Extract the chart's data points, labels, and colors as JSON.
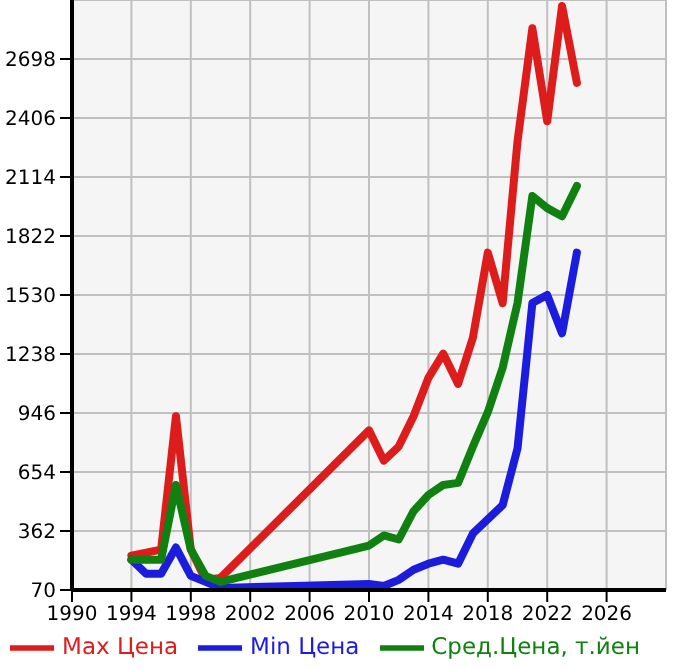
{
  "chart_data": {
    "type": "line",
    "xlim": [
      1990,
      2030
    ],
    "xticks": [
      1990,
      1994,
      1998,
      2002,
      2006,
      2010,
      2014,
      2018,
      2022,
      2026
    ],
    "ylim": [
      70,
      2990
    ],
    "yticks": [
      70,
      362,
      654,
      946,
      1238,
      1530,
      1822,
      2114,
      2406,
      2698
    ],
    "grid": true,
    "legend": "bottom",
    "marker": "none",
    "line_style": "solid",
    "series": [
      {
        "name": "Max Цена",
        "color": "#dd1c1c",
        "x": [
          1994,
          1996,
          1997,
          1998,
          1999,
          2000,
          2010,
          2011,
          2012,
          2013,
          2014,
          2015,
          2016,
          2017,
          2018,
          2019,
          2020,
          2021,
          2022,
          2023,
          2024
        ],
        "values": [
          240,
          270,
          930,
          270,
          120,
          130,
          860,
          710,
          780,
          930,
          1120,
          1240,
          1090,
          1320,
          1740,
          1490,
          2290,
          2850,
          2390,
          2960,
          2580
        ]
      },
      {
        "name": "Min Цена",
        "color": "#1c1cdd",
        "x": [
          1994,
          1995,
          1996,
          1997,
          1998,
          1999,
          2000,
          2005,
          2010,
          2011,
          2012,
          2013,
          2014,
          2015,
          2016,
          2017,
          2019,
          2020,
          2021,
          2022,
          2023,
          2024
        ],
        "values": [
          220,
          150,
          150,
          280,
          140,
          110,
          80,
          90,
          100,
          90,
          120,
          170,
          200,
          220,
          200,
          350,
          490,
          770,
          1490,
          1530,
          1340,
          1740
        ]
      },
      {
        "name": "Сред.Цена, т.йен",
        "color": "#108010",
        "x": [
          1994,
          1996,
          1997,
          1998,
          1999,
          2000,
          2010,
          2011,
          2012,
          2013,
          2014,
          2015,
          2016,
          2017,
          2018,
          2019,
          2020,
          2021,
          2022,
          2023,
          2024
        ],
        "values": [
          220,
          220,
          590,
          270,
          140,
          110,
          290,
          340,
          320,
          460,
          540,
          590,
          600,
          780,
          950,
          1170,
          1490,
          2020,
          1960,
          1920,
          2070
        ]
      }
    ]
  }
}
